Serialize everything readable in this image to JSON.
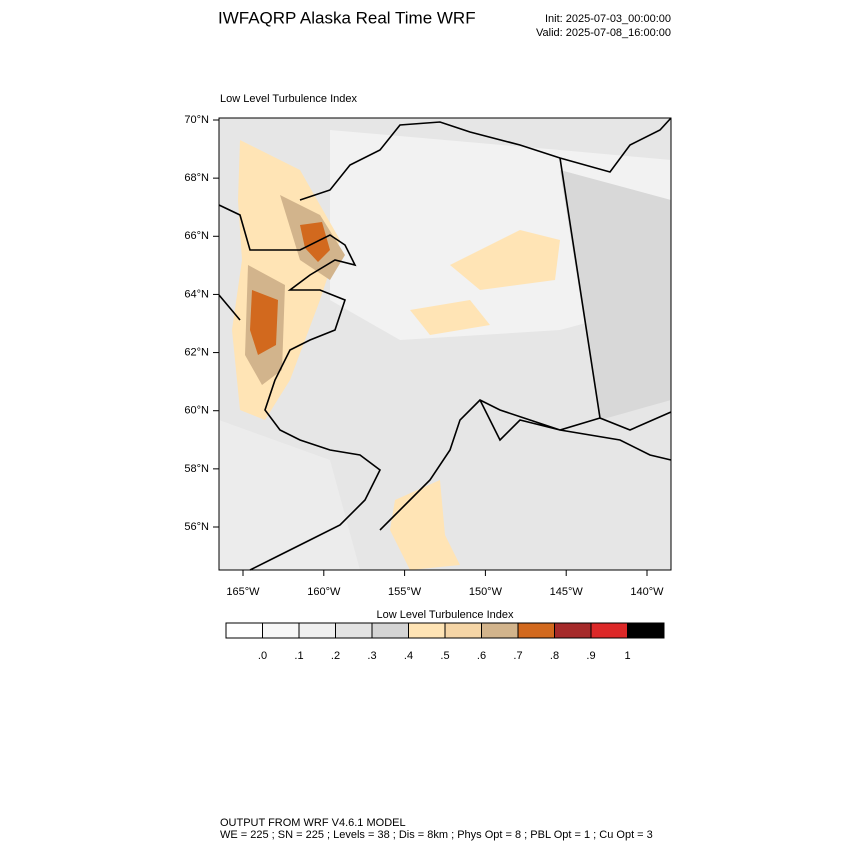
{
  "header": {
    "title": "IWFAQRP Alaska Real Time WRF",
    "init": "Init: 2025-07-03_00:00:00",
    "valid": "Valid: 2025-07-08_16:00:00"
  },
  "map": {
    "title": "Low Level Turbulence Index",
    "lat_ticks": [
      {
        "value": 70,
        "label": "70°N"
      },
      {
        "value": 68,
        "label": "68°N"
      },
      {
        "value": 66,
        "label": "66°N"
      },
      {
        "value": 64,
        "label": "64°N"
      },
      {
        "value": 62,
        "label": "62°N"
      },
      {
        "value": 60,
        "label": "60°N"
      },
      {
        "value": 58,
        "label": "58°N"
      },
      {
        "value": 56,
        "label": "56°N"
      }
    ],
    "lon_ticks": [
      {
        "value": -165,
        "label": "165°W"
      },
      {
        "value": -160,
        "label": "160°W"
      },
      {
        "value": -155,
        "label": "155°W"
      },
      {
        "value": -150,
        "label": "150°W"
      },
      {
        "value": -145,
        "label": "145°W"
      },
      {
        "value": -140,
        "label": "140°W"
      }
    ]
  },
  "colorbar": {
    "title": "Low Level Turbulence Index",
    "colors": [
      "#ffffff",
      "#f7f7f7",
      "#efefef",
      "#e3e3e3",
      "#d4d4d4",
      "#ffe4b5",
      "#f5d5a6",
      "#d2b48c",
      "#d2691e",
      "#a52a2a",
      "#dc2828",
      "#000000"
    ],
    "levels": [
      {
        "value": 0,
        "label": ".0"
      },
      {
        "value": 0.1,
        "label": ".1"
      },
      {
        "value": 0.2,
        "label": ".2"
      },
      {
        "value": 0.3,
        "label": ".3"
      },
      {
        "value": 0.4,
        "label": ".4"
      },
      {
        "value": 0.5,
        "label": ".5"
      },
      {
        "value": 0.6,
        "label": ".6"
      },
      {
        "value": 0.7,
        "label": ".7"
      },
      {
        "value": 0.8,
        "label": ".8"
      },
      {
        "value": 0.9,
        "label": ".9"
      },
      1
    ]
  },
  "footer": {
    "line1": "OUTPUT FROM WRF V4.6.1 MODEL",
    "line2": "WE = 225 ; SN = 225 ; Levels = 38 ; Dis = 8km ; Phys Opt = 8 ; PBL Opt = 1 ; Cu Opt = 3"
  }
}
